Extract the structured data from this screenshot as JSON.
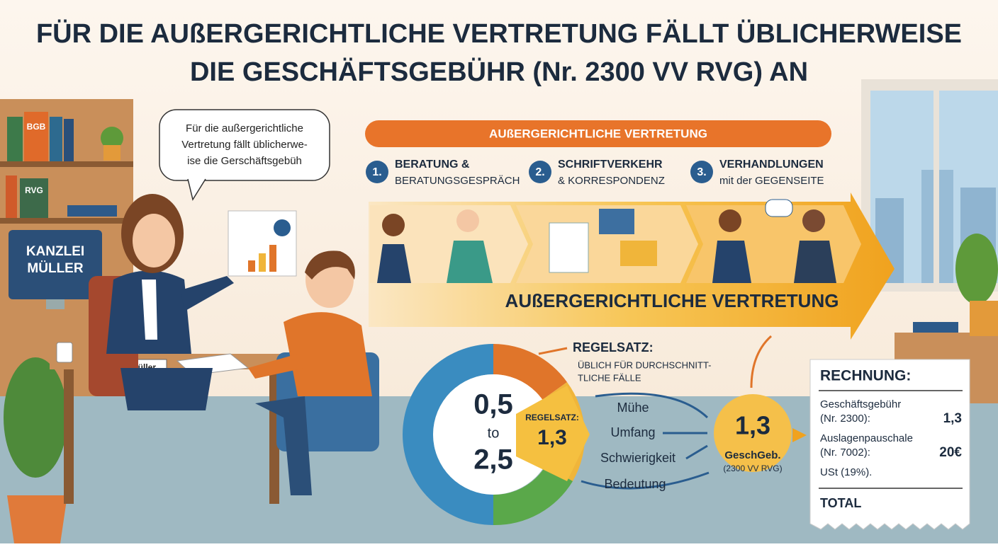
{
  "header": {
    "title_lines": [
      "FÜR DIE AUßERGERICHTLICHE VERTRETUNG FÄLLT ÜBLICHERWEISE",
      "DIE GESCHÄFTSGEBÜHR (Nr. 2300 VV RVG) AN"
    ]
  },
  "office": {
    "books": [
      "BGB",
      "RVG"
    ],
    "monitor": [
      "KANZLEI",
      "MÜLLER"
    ],
    "nameplate": "Sarah Müller",
    "speech_bubble": [
      "Für die außergerichtliche",
      "Vertretung fällt üblicherwe-",
      "ise die Gerschäftsgebüh"
    ]
  },
  "process": {
    "banner": "AUßERGERICHTLICHE VERTRETUNG",
    "steps": [
      {
        "number": "1.",
        "title": "BERATUNG &",
        "subtitle": "BERATUNGSGESPRÄCH"
      },
      {
        "number": "2.",
        "title": "SCHRIFTVERKEHR",
        "subtitle": "& KORRESPONDENZ"
      },
      {
        "number": "3.",
        "title": "VERHANDLUNGEN",
        "subtitle": "mit der GEGENSEITE"
      }
    ],
    "arrow_label": "AUßERGERICHTLICHE VERTRETUNG"
  },
  "rate": {
    "heading": "REGELSATZ:",
    "description": [
      "ÜBLICH FÜR DURCHSCHNITT-",
      "TLICHE FÄLLE"
    ],
    "range": [
      "0,5",
      "to",
      "2,5"
    ],
    "wedge_label": "REGELSATZ:",
    "wedge_value": "1,3",
    "factors": [
      "Mühe",
      "Umfang",
      "Schwierigkeit",
      "Bedeutung"
    ],
    "result": [
      "1,3",
      "GeschGeb.",
      "(2300 VV RVG)"
    ]
  },
  "invoice": {
    "title": "RECHNUNG:",
    "items": [
      {
        "label": [
          "Geschäftsgebühr",
          "(Nr. 2300):"
        ],
        "amount": "1,3"
      },
      {
        "label": [
          "Auslagenpauschale",
          "(Nr. 7002):"
        ],
        "amount": "20€"
      },
      {
        "label": [
          "USt (19%)."
        ]
      }
    ],
    "total": "TOTAL"
  }
}
